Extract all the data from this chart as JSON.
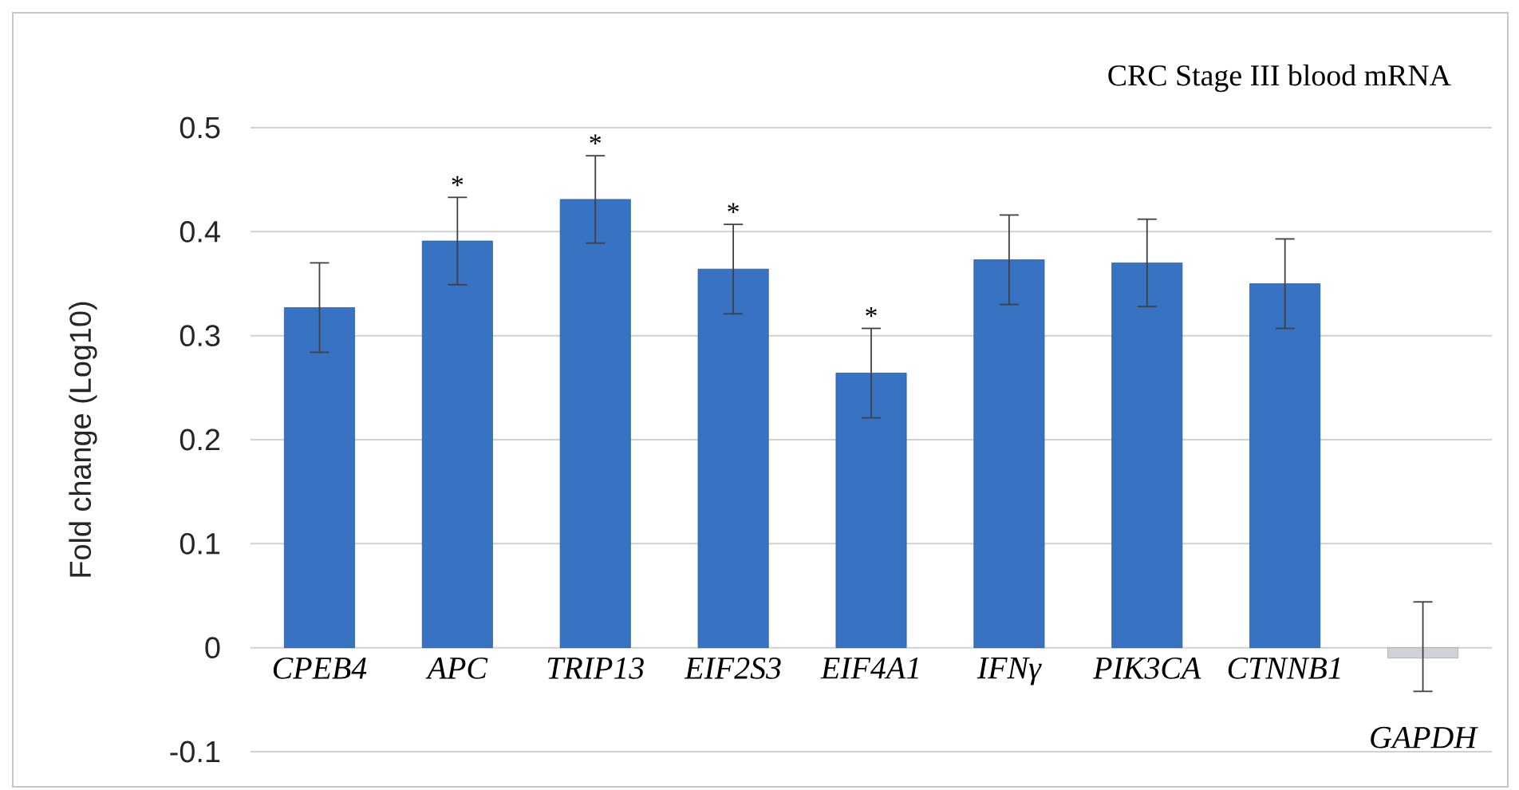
{
  "chart_data": {
    "type": "bar",
    "title": "CRC Stage III blood mRNA",
    "ylabel": "Fold change (Log10)",
    "categories": [
      "CPEB4",
      "APC",
      "TRIP13",
      "EIF2S3",
      "EIF4A1",
      "IFNγ",
      "PIK3CA",
      "CTNNB1",
      "GAPDH"
    ],
    "values": [
      0.327,
      0.391,
      0.431,
      0.364,
      0.264,
      0.373,
      0.37,
      0.35,
      -0.01
    ],
    "errors": [
      0.043,
      0.042,
      0.042,
      0.043,
      0.043,
      0.043,
      0.042,
      0.043,
      [
        -0.042,
        0.044
      ]
    ],
    "colors": [
      "#3773c2",
      "#3773c2",
      "#3773c2",
      "#3773c2",
      "#3773c2",
      "#3773c2",
      "#3773c2",
      "#3773c2",
      "#cfd2d6"
    ],
    "ylim": [
      -0.1,
      0.5
    ],
    "yticks": [
      -0.1,
      0,
      0.1,
      0.2,
      0.3,
      0.4,
      0.5
    ],
    "grid": "y",
    "annotations": [
      {
        "text": "*",
        "x": "APC",
        "y": 0.391
      },
      {
        "text": "*",
        "x": "TRIP13",
        "y": 0.431
      },
      {
        "text": "*",
        "x": "EIF2S3",
        "y": 0.364
      },
      {
        "text": "*",
        "x": "EIF4A1",
        "y": 0.264
      }
    ]
  }
}
